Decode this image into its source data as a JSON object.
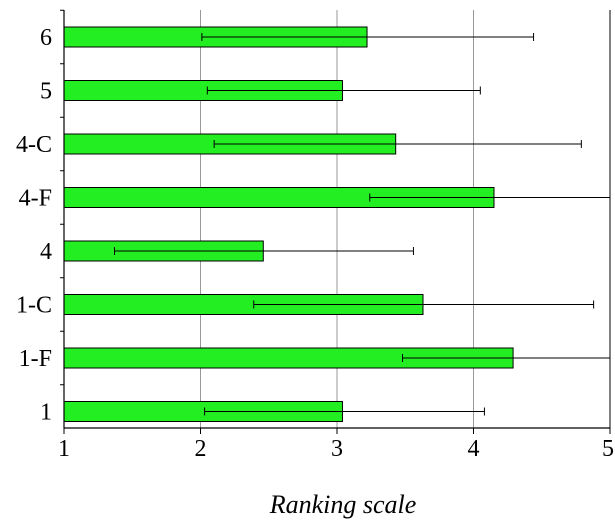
{
  "chart_data": {
    "type": "bar",
    "orientation": "horizontal",
    "title": "",
    "xlabel": "Ranking scale",
    "ylabel": "",
    "xlim": [
      1,
      5
    ],
    "xticks": [
      "1",
      "2",
      "3",
      "4",
      "5"
    ],
    "grid": "vertical",
    "legend": "none",
    "bar_color": "#22ee22",
    "categories": [
      "6",
      "5",
      "4-C",
      "4-F",
      "4",
      "1-C",
      "1-F",
      "1"
    ],
    "values": [
      3.22,
      3.04,
      3.43,
      4.15,
      2.46,
      3.63,
      4.29,
      3.04
    ],
    "error_low": [
      2.01,
      2.05,
      2.1,
      3.24,
      1.37,
      2.39,
      3.48,
      2.03
    ],
    "error_high": [
      4.44,
      4.05,
      4.79,
      5.0,
      3.56,
      4.88,
      5.0,
      4.08
    ]
  }
}
